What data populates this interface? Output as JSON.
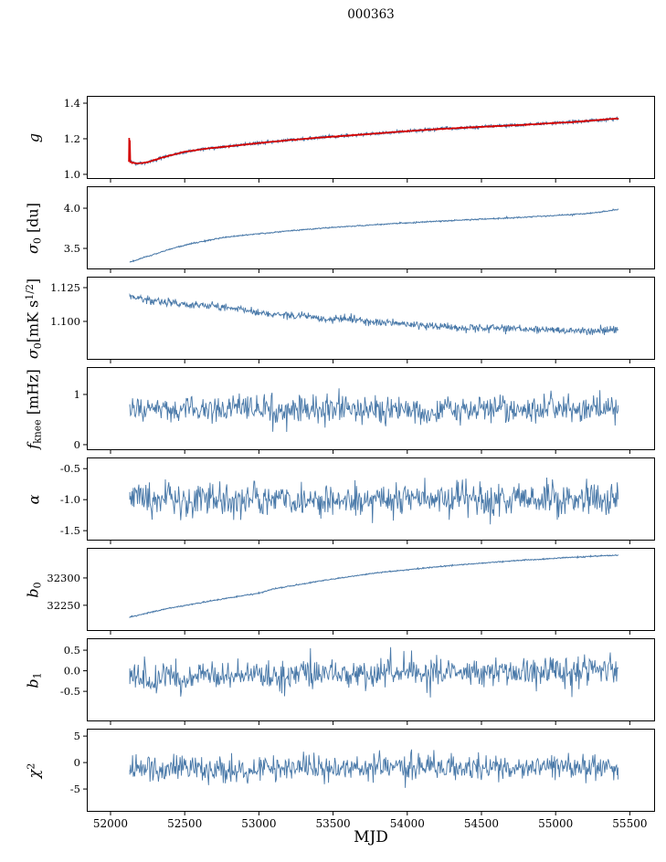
{
  "figure": {
    "title": "000363",
    "xlabel": "MJD",
    "background": "#ffffff",
    "axis_color": "#000000",
    "data_line_color": "#4878a8",
    "fit_line_color": "#d40000",
    "x_axis": {
      "min": 51840,
      "max": 55670,
      "ticks": [
        52000,
        52500,
        53000,
        53500,
        54000,
        54500,
        55000,
        55500
      ],
      "labels": [
        "52000",
        "52500",
        "53000",
        "53500",
        "54000",
        "54500",
        "55000",
        "55500"
      ]
    }
  },
  "chart_data": [
    {
      "name": "g",
      "type": "line",
      "ylabel": [
        {
          "t": "g",
          "italic": true
        }
      ],
      "ylim": [
        0.974,
        1.441
      ],
      "yticks": {
        "values": [
          1.0,
          1.2,
          1.4
        ],
        "labels": [
          "1.0",
          "1.2",
          "1.4"
        ]
      },
      "points": 1200,
      "series": [
        {
          "name": "measured",
          "color": "#4878a8",
          "width": 0.9,
          "noise": 0.005,
          "seed": 3,
          "trend": [
            [
              52130,
              1.078
            ],
            [
              52145,
              1.068
            ],
            [
              52180,
              1.062
            ],
            [
              52250,
              1.068
            ],
            [
              52350,
              1.095
            ],
            [
              52500,
              1.127
            ],
            [
              52650,
              1.145
            ],
            [
              52800,
              1.158
            ],
            [
              53000,
              1.176
            ],
            [
              53200,
              1.192
            ],
            [
              53400,
              1.206
            ],
            [
              53600,
              1.218
            ],
            [
              53800,
              1.23
            ],
            [
              54000,
              1.243
            ],
            [
              54200,
              1.254
            ],
            [
              54400,
              1.263
            ],
            [
              54600,
              1.271
            ],
            [
              54800,
              1.279
            ],
            [
              55000,
              1.289
            ],
            [
              55100,
              1.293
            ],
            [
              55200,
              1.299
            ],
            [
              55320,
              1.307
            ],
            [
              55420,
              1.312
            ]
          ]
        },
        {
          "name": "fit",
          "color": "#d40000",
          "width": 1.7,
          "noise": 0.0008,
          "seed": 9,
          "trend": [
            [
              52124,
              1.07
            ],
            [
              52126,
              1.205
            ],
            [
              52128,
              1.12
            ],
            [
              52130,
              1.19
            ],
            [
              52133,
              1.07
            ],
            [
              52145,
              1.066
            ],
            [
              52180,
              1.061
            ],
            [
              52250,
              1.068
            ],
            [
              52350,
              1.095
            ],
            [
              52500,
              1.127
            ],
            [
              52650,
              1.145
            ],
            [
              52800,
              1.158
            ],
            [
              53000,
              1.176
            ],
            [
              53200,
              1.192
            ],
            [
              53400,
              1.206
            ],
            [
              53600,
              1.218
            ],
            [
              53800,
              1.23
            ],
            [
              54000,
              1.243
            ],
            [
              54200,
              1.254
            ],
            [
              54400,
              1.263
            ],
            [
              54600,
              1.271
            ],
            [
              54800,
              1.279
            ],
            [
              55000,
              1.289
            ],
            [
              55100,
              1.293
            ],
            [
              55200,
              1.299
            ],
            [
              55320,
              1.308
            ],
            [
              55420,
              1.314
            ]
          ]
        }
      ]
    },
    {
      "name": "sigma0_du",
      "type": "line",
      "ylabel": [
        {
          "t": "σ",
          "italic": true
        },
        {
          "t": "0",
          "sub": true
        },
        {
          "t": " [du]"
        }
      ],
      "ylim": [
        3.239,
        4.273
      ],
      "yticks": {
        "values": [
          3.5,
          4.0
        ],
        "labels": [
          "3.5",
          "4.0"
        ]
      },
      "points": 900,
      "series": [
        {
          "name": "sigma0",
          "color": "#4878a8",
          "width": 1.0,
          "noise": 0.004,
          "seed": 21,
          "trend": [
            [
              52130,
              3.33
            ],
            [
              52200,
              3.37
            ],
            [
              52300,
              3.43
            ],
            [
              52400,
              3.49
            ],
            [
              52500,
              3.54
            ],
            [
              52600,
              3.58
            ],
            [
              52700,
              3.615
            ],
            [
              52800,
              3.645
            ],
            [
              52900,
              3.665
            ],
            [
              53000,
              3.682
            ],
            [
              53200,
              3.718
            ],
            [
              53400,
              3.748
            ],
            [
              53600,
              3.773
            ],
            [
              53800,
              3.796
            ],
            [
              54000,
              3.818
            ],
            [
              54200,
              3.838
            ],
            [
              54400,
              3.856
            ],
            [
              54600,
              3.872
            ],
            [
              54800,
              3.889
            ],
            [
              55000,
              3.91
            ],
            [
              55100,
              3.921
            ],
            [
              55200,
              3.933
            ],
            [
              55300,
              3.95
            ],
            [
              55420,
              3.985
            ]
          ]
        }
      ]
    },
    {
      "name": "sigma0_mK",
      "type": "line",
      "ylabel": [
        {
          "t": "σ",
          "italic": true
        },
        {
          "t": "0",
          "sub": true
        },
        {
          "t": "[mK s"
        },
        {
          "t": "1/2",
          "sup": true
        },
        {
          "t": "]"
        }
      ],
      "ylim": [
        1.0716,
        1.1331
      ],
      "yticks": {
        "values": [
          1.1,
          1.125
        ],
        "labels": [
          "1.100",
          "1.125"
        ]
      },
      "points": 900,
      "series": [
        {
          "name": "sigma0_noise",
          "color": "#4878a8",
          "width": 0.9,
          "noise": 0.0014,
          "seed": 33,
          "trend": [
            [
              52130,
              1.1185
            ],
            [
              52250,
              1.1158
            ],
            [
              52400,
              1.1138
            ],
            [
              52550,
              1.1125
            ],
            [
              52700,
              1.1108
            ],
            [
              52850,
              1.1098
            ],
            [
              53000,
              1.1065
            ],
            [
              53150,
              1.1048
            ],
            [
              53300,
              1.1042
            ],
            [
              53450,
              1.1012
            ],
            [
              53600,
              1.1018
            ],
            [
              53750,
              1.0998
            ],
            [
              53900,
              1.0986
            ],
            [
              54050,
              1.0975
            ],
            [
              54200,
              1.0962
            ],
            [
              54350,
              1.0956
            ],
            [
              54500,
              1.0952
            ],
            [
              54650,
              1.095
            ],
            [
              54800,
              1.0942
            ],
            [
              54950,
              1.0938
            ],
            [
              55100,
              1.0928
            ],
            [
              55250,
              1.0922
            ],
            [
              55350,
              1.0938
            ],
            [
              55420,
              1.0945
            ]
          ]
        }
      ]
    },
    {
      "name": "f_knee",
      "type": "line",
      "ylabel": [
        {
          "t": "f",
          "italic": true
        },
        {
          "t": "knee",
          "sub": true
        },
        {
          "t": " [mHz]"
        }
      ],
      "ylim": [
        -0.11,
        1.545
      ],
      "yticks": {
        "values": [
          0,
          1
        ],
        "labels": [
          "0",
          "1"
        ]
      },
      "points": 700,
      "series": [
        {
          "name": "fknee",
          "color": "#4878a8",
          "width": 0.9,
          "noise": 0.135,
          "seed": 44,
          "trend": [
            [
              52130,
              0.71
            ],
            [
              52800,
              0.69
            ],
            [
              53600,
              0.68
            ],
            [
              54400,
              0.69
            ],
            [
              55000,
              0.71
            ],
            [
              55420,
              0.72
            ]
          ]
        }
      ]
    },
    {
      "name": "alpha",
      "type": "line",
      "ylabel": [
        {
          "t": "α",
          "italic": true
        }
      ],
      "ylim": [
        -1.66,
        -0.32
      ],
      "yticks": {
        "values": [
          -1.5,
          -1.0,
          -0.5
        ],
        "labels": [
          "-1.5",
          "-1.0",
          "-0.5"
        ]
      },
      "points": 700,
      "series": [
        {
          "name": "alpha",
          "color": "#4878a8",
          "width": 0.9,
          "noise": 0.135,
          "seed": 55,
          "trend": [
            [
              52130,
              -1.0
            ],
            [
              53500,
              -1.005
            ],
            [
              54500,
              -0.995
            ],
            [
              55420,
              -1.0
            ]
          ]
        }
      ]
    },
    {
      "name": "b0",
      "type": "line",
      "ylabel": [
        {
          "t": "b",
          "italic": true
        },
        {
          "t": "0",
          "sub": true
        }
      ],
      "ylim": [
        32203,
        32355
      ],
      "yticks": {
        "values": [
          32250,
          32300
        ],
        "labels": [
          "32250",
          "32300"
        ]
      },
      "points": 900,
      "series": [
        {
          "name": "b0",
          "color": "#4878a8",
          "width": 1.0,
          "noise": 0.5,
          "seed": 66,
          "trend": [
            [
              52130,
              32228
            ],
            [
              52250,
              32236
            ],
            [
              52400,
              32245
            ],
            [
              52550,
              32252
            ],
            [
              52700,
              32259
            ],
            [
              52850,
              32266
            ],
            [
              53000,
              32272
            ],
            [
              53100,
              32280
            ],
            [
              53250,
              32287
            ],
            [
              53400,
              32294
            ],
            [
              53550,
              32300
            ],
            [
              53700,
              32306
            ],
            [
              53850,
              32311
            ],
            [
              54000,
              32315
            ],
            [
              54150,
              32319
            ],
            [
              54300,
              32323
            ],
            [
              54450,
              32326
            ],
            [
              54600,
              32329
            ],
            [
              54750,
              32332
            ],
            [
              54900,
              32334
            ],
            [
              55050,
              32337
            ],
            [
              55200,
              32339
            ],
            [
              55420,
              32342
            ]
          ]
        }
      ]
    },
    {
      "name": "b1",
      "type": "line",
      "ylabel": [
        {
          "t": "b",
          "italic": true
        },
        {
          "t": "1",
          "sub": true
        }
      ],
      "ylim": [
        -1.23,
        0.79
      ],
      "yticks": {
        "values": [
          -0.5,
          0.0,
          0.5
        ],
        "labels": [
          "-0.5",
          "0.0",
          "0.5"
        ]
      },
      "points": 700,
      "series": [
        {
          "name": "b1",
          "color": "#4878a8",
          "width": 0.9,
          "noise": 0.18,
          "seed": 77,
          "trend": [
            [
              52130,
              -0.17
            ],
            [
              52700,
              -0.15
            ],
            [
              53200,
              -0.1
            ],
            [
              53800,
              -0.06
            ],
            [
              54400,
              -0.03
            ],
            [
              55000,
              -0.01
            ],
            [
              55420,
              0.0
            ]
          ]
        }
      ]
    },
    {
      "name": "chi2",
      "type": "line",
      "ylabel": [
        {
          "t": "χ",
          "italic": true
        },
        {
          "t": "2",
          "sup": true
        }
      ],
      "ylim": [
        -9.3,
        6.4
      ],
      "yticks": {
        "values": [
          -5,
          0,
          5
        ],
        "labels": [
          "-5",
          "0",
          "5"
        ]
      },
      "points": 700,
      "series": [
        {
          "name": "chi2",
          "color": "#4878a8",
          "width": 0.9,
          "noise": 1.25,
          "seed": 88,
          "trend": [
            [
              52130,
              -1.1
            ],
            [
              53500,
              -1.0
            ],
            [
              54500,
              -0.9
            ],
            [
              55420,
              -0.85
            ]
          ]
        }
      ]
    }
  ]
}
